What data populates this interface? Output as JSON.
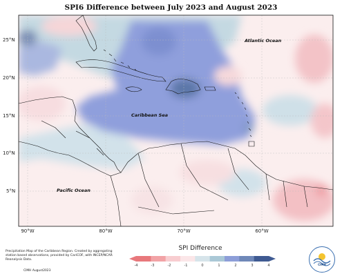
{
  "title": "SPI6 Difference between July 2023 and August 2023",
  "lat_labels": [
    "25°N",
    "20°N",
    "15°N",
    "10°N",
    "5°N"
  ],
  "lon_labels": [
    "90°W",
    "80°W",
    "70°W",
    "60°W"
  ],
  "ocean_labels": {
    "atlantic": "Atlantic Ocean",
    "caribbean": "Caribbean Sea",
    "pacific": "Pacific Ocean"
  },
  "credits": "Precipitation Map of the Caribbean Region. Created by aggregating station based observations, provided by CariCOF, with INCEP/NCAR Reanalysis Data.",
  "copyright": "CIMH August2023",
  "legend": {
    "title": "SPI Difference",
    "ticks": [
      "-4",
      "-3",
      "-2",
      "-1",
      "0",
      "1",
      "2",
      "3",
      "4"
    ],
    "colors": [
      "#e8787c",
      "#f2a3a6",
      "#f8cdd0",
      "#fbe6e8",
      "#d6e4ea",
      "#aac8d6",
      "#8d9ed8",
      "#6f88b8",
      "#3f5a92"
    ]
  },
  "logo_text": "CIMH"
}
